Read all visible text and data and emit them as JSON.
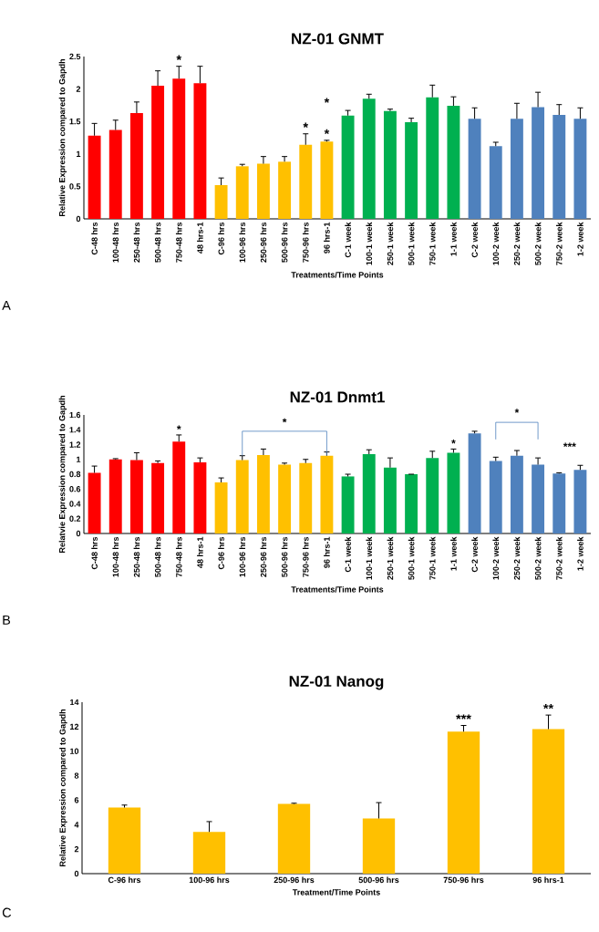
{
  "chart_data": [
    {
      "type": "bar",
      "title": "NZ-01 GNMT",
      "xlabel": "Treatments/Time Points",
      "ylabel": "Relative Expression compared to Gapdh",
      "categories": [
        "C-48 hrs",
        "100-48 hrs",
        "250-48 hrs",
        "500-48 hrs",
        "750-48 hrs",
        "48 hrs-1",
        "C-96 hrs",
        "100-96 hrs",
        "250-96 hrs",
        "500-96 hrs",
        "750-96 hrs",
        "96 hrs-1",
        "C-1 week",
        "100-1 week",
        "250-1 week",
        "500-1 week",
        "750-1 week",
        "1-1 week",
        "C-2 week",
        "100-2 week",
        "250-2 week",
        "500-2 week",
        "750-2 week",
        "1-2 week"
      ],
      "values": [
        1.28,
        1.37,
        1.63,
        2.05,
        2.16,
        2.09,
        0.52,
        0.81,
        0.85,
        0.88,
        1.14,
        1.19,
        1.59,
        1.85,
        1.66,
        1.49,
        1.87,
        1.74,
        1.54,
        1.12,
        1.54,
        1.72,
        1.6,
        1.54
      ],
      "errors": [
        [
          1.28,
          1.47
        ],
        [
          1.37,
          1.52
        ],
        [
          1.63,
          1.8
        ],
        [
          2.05,
          2.28
        ],
        [
          2.16,
          2.35
        ],
        [
          2.09,
          2.35
        ],
        [
          0.52,
          0.63
        ],
        [
          0.81,
          0.84
        ],
        [
          0.85,
          0.96
        ],
        [
          0.88,
          0.96
        ],
        [
          1.14,
          1.31
        ],
        [
          1.19,
          1.21
        ],
        [
          1.59,
          1.67
        ],
        [
          1.85,
          1.92
        ],
        [
          1.66,
          1.69
        ],
        [
          1.49,
          1.55
        ],
        [
          1.87,
          2.06
        ],
        [
          1.74,
          1.88
        ],
        [
          1.54,
          1.71
        ],
        [
          1.12,
          1.18
        ],
        [
          1.54,
          1.78
        ],
        [
          1.72,
          1.95
        ],
        [
          1.6,
          1.76
        ],
        [
          1.54,
          1.71
        ]
      ],
      "colors": [
        "#ff0000",
        "#ff0000",
        "#ff0000",
        "#ff0000",
        "#ff0000",
        "#ff0000",
        "#ffc000",
        "#ffc000",
        "#ffc000",
        "#ffc000",
        "#ffc000",
        "#ffc000",
        "#00b050",
        "#00b050",
        "#00b050",
        "#00b050",
        "#00b050",
        "#00b050",
        "#4f81bd",
        "#4f81bd",
        "#4f81bd",
        "#4f81bd",
        "#4f81bd",
        "#4f81bd"
      ],
      "ylim": [
        0,
        2.5
      ],
      "yticks": [
        0,
        0.5,
        1,
        1.5,
        2,
        2.5
      ],
      "annotations": [
        {
          "text": "*",
          "x": "750-48 hrs",
          "y": 2.35
        },
        {
          "text": "*",
          "x": "750-96 hrs",
          "y": 1.31
        },
        {
          "text": "*",
          "x": "96 hrs-1",
          "y": 1.21
        },
        "*",
        "A"
      ]
    },
    {
      "type": "bar",
      "title": "NZ-01 Dnmt1",
      "xlabel": "Treatments/Time Points",
      "ylabel": "Relatvie Expression compared to Gapdh",
      "categories": [
        "C-48 hrs",
        "100-48 hrs",
        "250-48 hrs",
        "500-48 hrs",
        "750-48 hrs",
        "48 hrs-1",
        "C-96 hrs",
        "100-96 hrs",
        "250-96 hrs",
        "500-96 hrs",
        "750-96 hrs",
        "96 hrs-1",
        "C-1 week",
        "100-1 week",
        "250-1 week",
        "500-1 week",
        "750-1 week",
        "1-1 week",
        "C-2 week",
        "100-2 week",
        "250-2 week",
        "500-2 week",
        "750-2 week",
        "1-2 week"
      ],
      "values": [
        0.82,
        1.0,
        0.99,
        0.95,
        1.24,
        0.96,
        0.69,
        0.99,
        1.06,
        0.93,
        0.95,
        1.05,
        0.77,
        1.07,
        0.89,
        0.8,
        1.02,
        1.09,
        1.35,
        0.98,
        1.05,
        0.93,
        0.81,
        0.86
      ],
      "errors": [
        [
          0.82,
          0.91
        ],
        [
          1.0,
          1.01
        ],
        [
          0.99,
          1.09
        ],
        [
          0.95,
          0.98
        ],
        [
          1.24,
          1.33
        ],
        [
          0.96,
          1.02
        ],
        [
          0.69,
          0.75
        ],
        [
          0.99,
          1.05
        ],
        [
          1.06,
          1.14
        ],
        [
          0.93,
          0.95
        ],
        [
          0.95,
          1.0
        ],
        [
          1.05,
          1.1
        ],
        [
          0.77,
          0.8
        ],
        [
          1.07,
          1.13
        ],
        [
          0.89,
          1.02
        ],
        [
          0.8,
          0.8
        ],
        [
          1.02,
          1.11
        ],
        [
          1.09,
          1.14
        ],
        [
          1.35,
          1.38
        ],
        [
          0.98,
          1.03
        ],
        [
          1.05,
          1.12
        ],
        [
          0.93,
          1.02
        ],
        [
          0.81,
          0.82
        ],
        [
          0.86,
          0.92
        ]
      ],
      "colors": [
        "#ff0000",
        "#ff0000",
        "#ff0000",
        "#ff0000",
        "#ff0000",
        "#ff0000",
        "#ffc000",
        "#ffc000",
        "#ffc000",
        "#ffc000",
        "#ffc000",
        "#ffc000",
        "#00b050",
        "#00b050",
        "#00b050",
        "#00b050",
        "#00b050",
        "#00b050",
        "#4f81bd",
        "#4f81bd",
        "#4f81bd",
        "#4f81bd",
        "#4f81bd",
        "#4f81bd"
      ],
      "ylim": [
        0,
        1.6
      ],
      "yticks": [
        0,
        0.2,
        0.4,
        0.6,
        0.8,
        1,
        1.2,
        1.4,
        1.6
      ],
      "annotations": [
        {
          "text": "*",
          "x": "750-48 hrs",
          "y": 1.33
        },
        "*",
        {
          "text": "*",
          "x": "1-1 week",
          "y": 1.14
        },
        "*",
        "***",
        "B"
      ]
    },
    {
      "type": "bar",
      "title": "NZ-01 Nanog",
      "xlabel": "Treatment/Time Points",
      "ylabel": "Relative Expression compared to Gapdh",
      "categories": [
        "C-96 hrs",
        "100-96 hrs",
        "250-96 hrs",
        "500-96 hrs",
        "750-96 hrs",
        "96 hrs-1"
      ],
      "values": [
        5.4,
        3.4,
        5.7,
        4.5,
        11.6,
        11.8
      ],
      "errors": [
        [
          5.4,
          5.6
        ],
        [
          3.4,
          4.25
        ],
        [
          5.7,
          5.75
        ],
        [
          4.5,
          5.8
        ],
        [
          11.6,
          12.1
        ],
        [
          11.8,
          12.95
        ]
      ],
      "colors": [
        "#ffc000",
        "#ffc000",
        "#ffc000",
        "#ffc000",
        "#ffc000",
        "#ffc000"
      ],
      "ylim": [
        0,
        14
      ],
      "yticks": [
        0,
        2,
        4,
        6,
        8,
        10,
        12,
        14
      ],
      "annotations": [
        {
          "text": "***",
          "x": "750-96 hrs",
          "y": 12.1
        },
        {
          "text": "**",
          "x": "96 hrs-1",
          "y": 12.95
        },
        "C"
      ]
    }
  ]
}
